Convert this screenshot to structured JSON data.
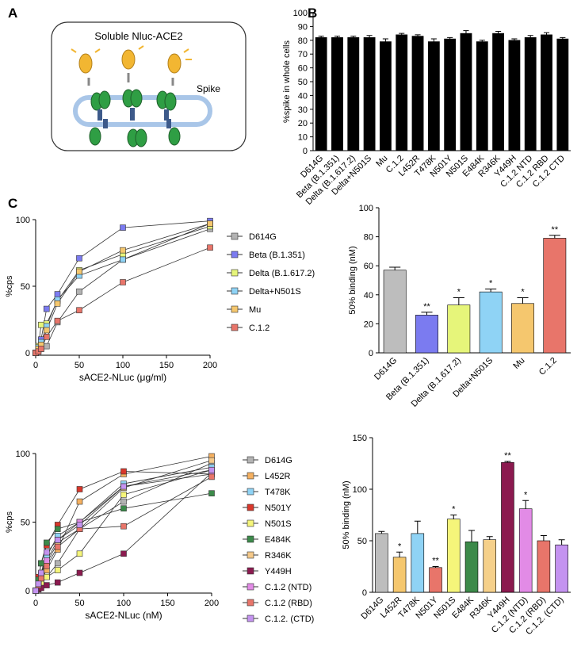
{
  "panels": [
    "A",
    "B",
    "C"
  ],
  "diagram": {
    "title": "Soluble Nluc-ACE2",
    "spike": "Spike"
  },
  "chart_data": [
    {
      "type": "bar",
      "ylabel": "%spike in whole cells",
      "color": "#000000",
      "categories": [
        "D614G",
        "Beta (B.1.351)",
        "Delta (B.1.617.2)",
        "Delta+N501S",
        "Mu",
        "C.1.2",
        "L452R",
        "T478K",
        "N501Y",
        "N501S",
        "E484K",
        "R346K",
        "Y449H",
        "C.1.2 NTD",
        "C.1.2 RBD",
        "C.1.2 CTD"
      ],
      "values": [
        82,
        82,
        82,
        82,
        79,
        84,
        83,
        79,
        81,
        85,
        79,
        85,
        80,
        82,
        84,
        81
      ],
      "errors": [
        1,
        1,
        1,
        1.5,
        2,
        1,
        1,
        2,
        1,
        2,
        1,
        1.5,
        1,
        1.5,
        1.5,
        1
      ],
      "ylim": [
        0,
        100
      ],
      "yticks": [
        0,
        10,
        20,
        30,
        40,
        50,
        60,
        70,
        80,
        90,
        100
      ]
    },
    {
      "type": "line",
      "xlabel": "sACE2-NLuc (μg/ml)",
      "ylabel": "%cps",
      "curve_color": "#333333",
      "x": [
        0,
        3.125,
        6.25,
        12.5,
        25,
        50,
        100,
        200
      ],
      "series": [
        {
          "name": "D614G",
          "color": "#b3b3b3",
          "values": [
            0,
            2,
            3,
            5,
            23,
            46,
            70,
            93
          ]
        },
        {
          "name": "Beta (B.1.351)",
          "color": "#7b7bf0",
          "values": [
            0,
            5,
            10,
            33,
            44,
            71,
            94,
            99
          ]
        },
        {
          "name": "Delta (B.1.617.2)",
          "color": "#e6f57a",
          "values": [
            0,
            5,
            21,
            22,
            39,
            62,
            74,
            95
          ]
        },
        {
          "name": "Delta+N501S",
          "color": "#8fd3f5",
          "values": [
            0,
            4,
            8,
            20,
            40,
            58,
            70,
            97
          ]
        },
        {
          "name": "Mu",
          "color": "#f5c76e",
          "values": [
            0,
            3,
            6,
            17,
            37,
            61,
            77,
            97
          ]
        },
        {
          "name": "C.1.2",
          "color": "#e8756a",
          "values": [
            0,
            1,
            3,
            12,
            24,
            32,
            53,
            79
          ]
        }
      ],
      "xlim": [
        0,
        200
      ],
      "xticks": [
        0,
        50,
        100,
        150,
        200
      ],
      "ylim": [
        0,
        100
      ],
      "yticks": [
        0,
        50,
        100
      ]
    },
    {
      "type": "bar",
      "ylabel": "50% binding (nM)",
      "categories": [
        "D614G",
        "Beta (B.1.351)",
        "Delta (B.1.617.2)",
        "Delta+N501S",
        "Mu",
        "C.1.2"
      ],
      "values": [
        57,
        26,
        33,
        42,
        34,
        79
      ],
      "errors": [
        2,
        2,
        5,
        2,
        4,
        2
      ],
      "significance": [
        null,
        "**",
        "*",
        "*",
        "*",
        "**"
      ],
      "colors": [
        "#bdbdbd",
        "#7b7bf0",
        "#e6f57a",
        "#8fd3f5",
        "#f5c76e",
        "#e8756a"
      ],
      "ylim": [
        0,
        100
      ],
      "yticks": [
        0,
        20,
        40,
        60,
        80,
        100
      ]
    },
    {
      "type": "line",
      "xlabel": "sACE2-NLuc (nM)",
      "ylabel": "%cps",
      "curve_color": "#333333",
      "x": [
        0,
        3.125,
        6.25,
        12.5,
        25,
        50,
        100,
        200
      ],
      "series": [
        {
          "name": "D614G",
          "color": "#b3b3b3",
          "values": [
            0,
            2,
            5,
            10,
            20,
            45,
            65,
            93
          ]
        },
        {
          "name": "L452R",
          "color": "#f5b060",
          "values": [
            0,
            3,
            8,
            15,
            30,
            65,
            85,
            98
          ]
        },
        {
          "name": "T478K",
          "color": "#8fd3f5",
          "values": [
            0,
            5,
            12,
            25,
            40,
            50,
            78,
            90
          ]
        },
        {
          "name": "N501Y",
          "color": "#d9372b",
          "values": [
            0,
            10,
            20,
            33,
            48,
            74,
            87,
            85
          ]
        },
        {
          "name": "N501S",
          "color": "#f5f57a",
          "values": [
            0,
            3,
            5,
            10,
            15,
            27,
            70,
            88
          ]
        },
        {
          "name": "E484K",
          "color": "#3c8a4a",
          "values": [
            0,
            8,
            20,
            35,
            45,
            50,
            60,
            71
          ]
        },
        {
          "name": "R346K",
          "color": "#f5c98a",
          "values": [
            0,
            4,
            10,
            20,
            35,
            45,
            75,
            95
          ]
        },
        {
          "name": "Y449H",
          "color": "#8b1a4f",
          "values": [
            0,
            1,
            2,
            4,
            6,
            13,
            27,
            86
          ]
        },
        {
          "name": "C.1.2 (NTD)",
          "color": "#e28be6",
          "values": [
            0,
            5,
            12,
            22,
            37,
            50,
            76,
            85
          ]
        },
        {
          "name": "C.1.2 (RBD)",
          "color": "#e8756a",
          "values": [
            0,
            4,
            9,
            18,
            32,
            45,
            47,
            83
          ]
        },
        {
          "name": "C.1.2. (CTD)",
          "color": "#c493f0",
          "values": [
            0,
            5,
            13,
            28,
            37,
            48,
            76,
            88
          ]
        }
      ],
      "xlim": [
        0,
        200
      ],
      "xticks": [
        0,
        50,
        100,
        150,
        200
      ],
      "ylim": [
        0,
        100
      ],
      "yticks": [
        0,
        50,
        100
      ]
    },
    {
      "type": "bar",
      "ylabel": "50% binding (nM)",
      "categories": [
        "D614G",
        "L452R",
        "T478K",
        "N501Y",
        "N501S",
        "E484K",
        "R346K",
        "Y449H",
        "C.1.2 (NTD)",
        "C.1.2 (RBD)",
        "C.1.2. (CTD)"
      ],
      "values": [
        57,
        34,
        57,
        24,
        71,
        49,
        51,
        126,
        81,
        50,
        46
      ],
      "errors": [
        2,
        5,
        12,
        1,
        4,
        11,
        3,
        1,
        8,
        5,
        5
      ],
      "significance": [
        null,
        "*",
        null,
        "**",
        "*",
        null,
        null,
        "**",
        "*",
        null,
        null
      ],
      "colors": [
        "#bdbdbd",
        "#f5c76e",
        "#8fd3f5",
        "#e8756a",
        "#f5f57a",
        "#3c8a4a",
        "#f5d08a",
        "#8b1a4f",
        "#e28be6",
        "#e8756a",
        "#c493f0"
      ],
      "ylim": [
        0,
        150
      ],
      "yticks": [
        0,
        50,
        100,
        150
      ]
    }
  ]
}
